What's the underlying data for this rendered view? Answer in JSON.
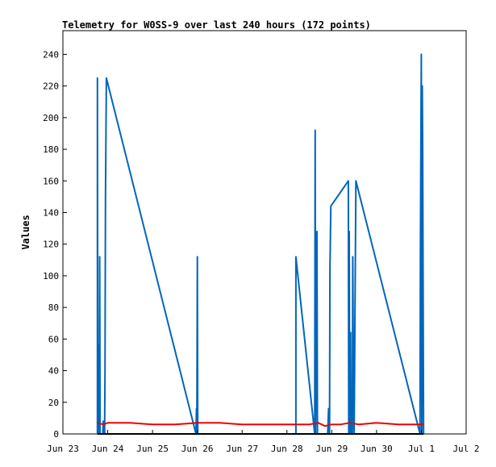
{
  "chart_data": {
    "type": "line",
    "title": "Telemetry for W0SS-9 over last 240 hours (172 points)",
    "ylabel": "Values",
    "xlabel": "",
    "xlim": [
      0,
      9
    ],
    "ylim": [
      0,
      255
    ],
    "x_ticks": [
      {
        "v": 0,
        "label": "Jun 23"
      },
      {
        "v": 1,
        "label": "Jun 24"
      },
      {
        "v": 2,
        "label": "Jun 25"
      },
      {
        "v": 3,
        "label": "Jun 26"
      },
      {
        "v": 4,
        "label": "Jun 27"
      },
      {
        "v": 5,
        "label": "Jun 28"
      },
      {
        "v": 6,
        "label": "Jun 29"
      },
      {
        "v": 7,
        "label": "Jun 30"
      },
      {
        "v": 8,
        "label": "Jul 1"
      },
      {
        "v": 9,
        "label": "Jul 2"
      }
    ],
    "y_ticks": [
      0,
      20,
      40,
      60,
      80,
      100,
      120,
      140,
      160,
      180,
      200,
      220,
      240
    ],
    "grid": false,
    "series": [
      {
        "color": "#0066bb",
        "points": [
          [
            0.77,
            0
          ],
          [
            0.77,
            225
          ],
          [
            0.78,
            0
          ],
          [
            0.8,
            56
          ],
          [
            0.81,
            0
          ],
          [
            0.82,
            112
          ],
          [
            0.83,
            0
          ],
          [
            0.89,
            0
          ],
          [
            0.9,
            8
          ],
          [
            0.93,
            0
          ],
          [
            0.94,
            40
          ],
          [
            0.95,
            150
          ],
          [
            0.97,
            225
          ],
          [
            2.97,
            0
          ],
          [
            2.98,
            16
          ],
          [
            2.99,
            0
          ],
          [
            3.0,
            112
          ],
          [
            3.01,
            0
          ],
          [
            5.2,
            0
          ],
          [
            5.2,
            112
          ],
          [
            5.62,
            0
          ],
          [
            5.63,
            192
          ],
          [
            5.64,
            0
          ],
          [
            5.67,
            128
          ],
          [
            5.68,
            0
          ],
          [
            5.91,
            0
          ],
          [
            5.93,
            16
          ],
          [
            5.95,
            0
          ],
          [
            5.96,
            104
          ],
          [
            5.98,
            144
          ],
          [
            6.37,
            160
          ],
          [
            6.38,
            0
          ],
          [
            6.39,
            128
          ],
          [
            6.4,
            0
          ],
          [
            6.42,
            64
          ],
          [
            6.43,
            0
          ],
          [
            6.46,
            0
          ],
          [
            6.47,
            112
          ],
          [
            6.48,
            56
          ],
          [
            6.49,
            16
          ],
          [
            6.5,
            0
          ],
          [
            6.52,
            80
          ],
          [
            6.54,
            160
          ],
          [
            7.97,
            0
          ],
          [
            7.98,
            120
          ],
          [
            8.0,
            240
          ],
          [
            8.01,
            0
          ],
          [
            8.02,
            220
          ],
          [
            8.03,
            180
          ],
          [
            8.04,
            80
          ],
          [
            8.05,
            0
          ]
        ]
      },
      {
        "color": "#ee0000",
        "points": [
          [
            0.77,
            7
          ],
          [
            0.9,
            6
          ],
          [
            1.0,
            7
          ],
          [
            1.5,
            7
          ],
          [
            2.0,
            6
          ],
          [
            2.5,
            6
          ],
          [
            3.0,
            7
          ],
          [
            3.5,
            7
          ],
          [
            4.0,
            6
          ],
          [
            4.5,
            6
          ],
          [
            5.0,
            6
          ],
          [
            5.5,
            6
          ],
          [
            5.7,
            7
          ],
          [
            5.85,
            5
          ],
          [
            6.0,
            6
          ],
          [
            6.2,
            6
          ],
          [
            6.4,
            7
          ],
          [
            6.6,
            6
          ],
          [
            7.0,
            7
          ],
          [
            7.5,
            6
          ],
          [
            7.9,
            6
          ],
          [
            8.05,
            6
          ]
        ]
      },
      {
        "color": "#000000",
        "points": [
          [
            0.77,
            0
          ],
          [
            8.05,
            0
          ]
        ]
      }
    ]
  }
}
